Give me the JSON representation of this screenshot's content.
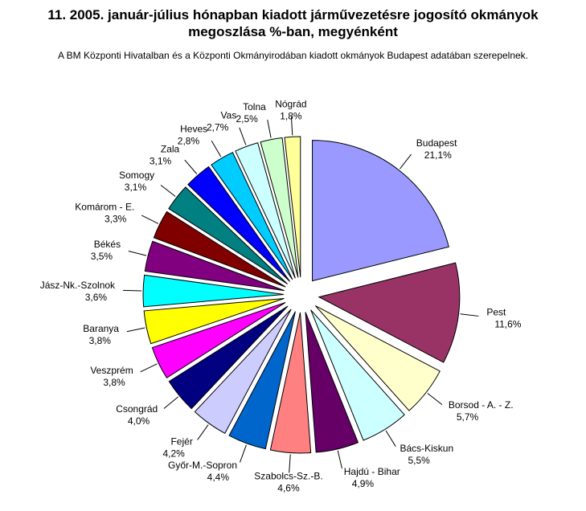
{
  "chart_data": {
    "type": "pie",
    "title": "11. 2005. január-július hónapban kiadott járművezetésre jogosító okmányok megoszlása %-ban, megyénként",
    "subtitle": "A BM Központi Hivatalban és a Központi Okmányirodában kiadott okmányok Budapest adatában szerepelnek.",
    "categories": [
      "Budapest",
      "Pest",
      "Borsod - A. - Z.",
      "Bács-Kiskun",
      "Hajdú - Bihar",
      "Szabolcs-Sz.-B.",
      "Győr-M.-Sopron",
      "Fejér",
      "Csongrád",
      "Veszprém",
      "Baranya",
      "Jász-Nk.-Szolnok",
      "Békés",
      "Komárom - E.",
      "Somogy",
      "Zala",
      "Heves",
      "Vas",
      "Tolna",
      "Nógrád"
    ],
    "values": [
      21.1,
      11.6,
      5.7,
      5.5,
      4.9,
      4.6,
      4.4,
      4.2,
      4.0,
      3.8,
      3.8,
      3.6,
      3.5,
      3.3,
      3.1,
      3.1,
      2.8,
      2.7,
      2.5,
      1.8
    ],
    "value_labels": [
      "21,1%",
      "11,6%",
      "5,7%",
      "5,5%",
      "4,9%",
      "4,6%",
      "4,4%",
      "4,2%",
      "4,0%",
      "3,8%",
      "3,8%",
      "3,6%",
      "3,5%",
      "3,3%",
      "3,1%",
      "3,1%",
      "2,8%",
      "2,7%",
      "2,5%",
      "1,8%"
    ],
    "colors": [
      "#9999ff",
      "#993366",
      "#ffffcc",
      "#ccffff",
      "#660066",
      "#ff8080",
      "#0066cc",
      "#ccccff",
      "#000080",
      "#ff00ff",
      "#ffff00",
      "#00ffff",
      "#800080",
      "#800000",
      "#008080",
      "#0000ff",
      "#00ccff",
      "#ccffff",
      "#ccffcc",
      "#ffff99"
    ]
  }
}
